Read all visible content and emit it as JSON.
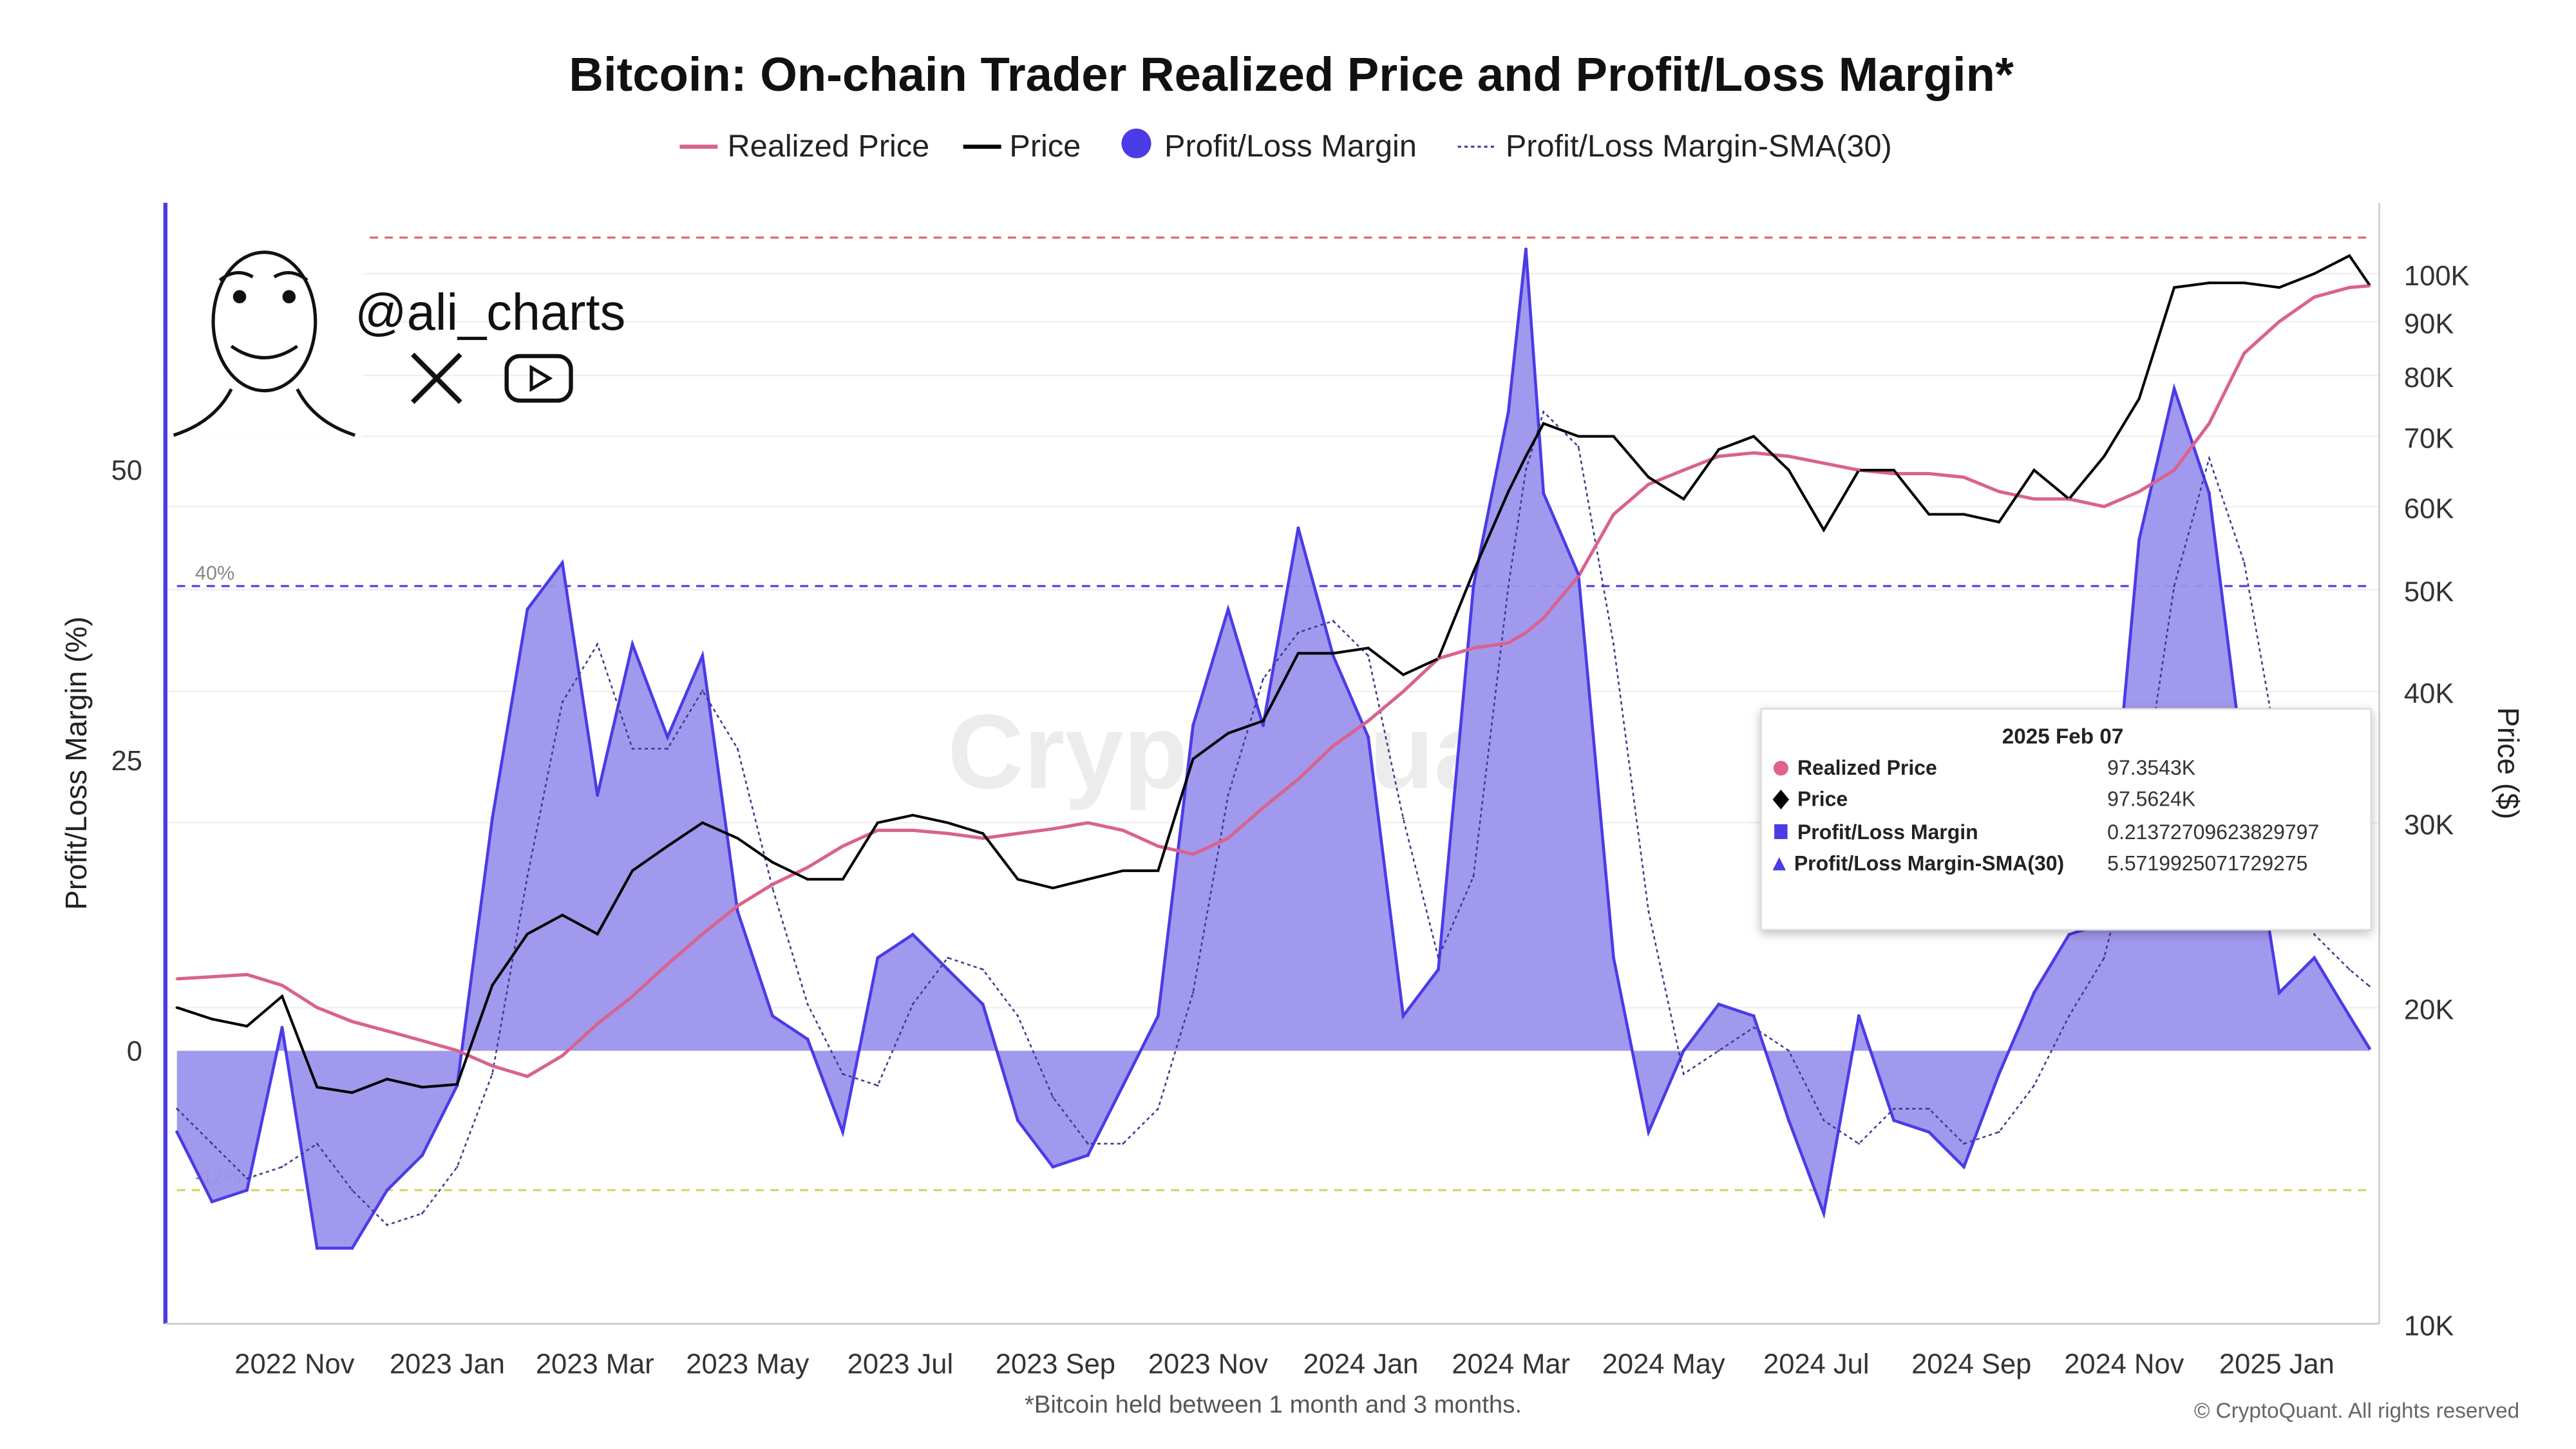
{
  "chart_data": {
    "type": "area",
    "title": "Bitcoin: On-chain Trader Realized Price and Profit/Loss Margin*",
    "footnote": "*Bitcoin held between 1 month and 3 months.",
    "copyright": "© CryptoQuant. All rights reserved",
    "watermark": "CryptoQuant",
    "handle": "@ali_charts",
    "legend": [
      {
        "name": "Realized Price",
        "color": "#d9628e",
        "marker": "line"
      },
      {
        "name": "Price",
        "color": "#000000",
        "marker": "line"
      },
      {
        "name": "Profit/Loss Margin",
        "color": "#4b3be6",
        "marker": "circle"
      },
      {
        "name": "Profit/Loss Margin-SMA(30)",
        "color": "#3b3b8f",
        "marker": "dashed-line"
      }
    ],
    "legend_position": "top-center",
    "ylabel_left": "Profit/Loss Margin (%)",
    "ylabel_right": "Price ($)",
    "y_left_ticks": [
      "50",
      "25",
      "0"
    ],
    "y_left_tick_values": [
      50,
      25,
      0
    ],
    "y_left_range": [
      -23.5,
      73
    ],
    "y_right_scale": "log",
    "y_right_ticks": [
      "100K",
      "90K",
      "80K",
      "70K",
      "60K",
      "50K",
      "40K",
      "30K",
      "20K",
      "10K"
    ],
    "y_right_tick_values": [
      100,
      90,
      80,
      70,
      60,
      50,
      40,
      30,
      20,
      10
    ],
    "y_right_range_k": [
      10,
      110
    ],
    "x_range": [
      "2022-09-15",
      "2025-02-07"
    ],
    "x_ticks": [
      "2022 Nov",
      "2023 Jan",
      "2023 Mar",
      "2023 May",
      "2023 Jul",
      "2023 Sep",
      "2023 Nov",
      "2024 Jan",
      "2024 Mar",
      "2024 May",
      "2024 Jul",
      "2024 Sep",
      "2024 Nov",
      "2025 Jan"
    ],
    "x_tick_dates": [
      "2022-11-01",
      "2023-01-01",
      "2023-03-01",
      "2023-05-01",
      "2023-07-01",
      "2023-09-01",
      "2023-11-01",
      "2024-01-01",
      "2024-03-01",
      "2024-05-01",
      "2024-07-01",
      "2024-09-01",
      "2024-11-01",
      "2025-01-01"
    ],
    "thresholds": [
      {
        "label": "70%",
        "value": 70,
        "color": "#e0606a"
      },
      {
        "label": "40%",
        "value": 40,
        "color": "#4b3be6"
      },
      {
        "label": "-12%",
        "value": -12,
        "color": "#d8d060"
      }
    ],
    "grid": true,
    "series": [
      {
        "date": "2022-09-15",
        "margin": -7,
        "sma": -5,
        "price": 20.0,
        "realized": 21.3
      },
      {
        "date": "2022-09-29",
        "margin": -13,
        "sma": -8,
        "price": 19.5,
        "realized": 21.4
      },
      {
        "date": "2022-10-13",
        "margin": -12,
        "sma": -11,
        "price": 19.2,
        "realized": 21.5
      },
      {
        "date": "2022-10-27",
        "margin": 2,
        "sma": -10,
        "price": 20.5,
        "realized": 21.0
      },
      {
        "date": "2022-11-10",
        "margin": -17,
        "sma": -8,
        "price": 16.8,
        "realized": 20.0
      },
      {
        "date": "2022-11-24",
        "margin": -17,
        "sma": -12,
        "price": 16.6,
        "realized": 19.4
      },
      {
        "date": "2022-12-08",
        "margin": -12,
        "sma": -15,
        "price": 17.1,
        "realized": 19.0
      },
      {
        "date": "2022-12-22",
        "margin": -9,
        "sma": -14,
        "price": 16.8,
        "realized": 18.6
      },
      {
        "date": "2023-01-05",
        "margin": -3,
        "sma": -10,
        "price": 16.9,
        "realized": 18.2
      },
      {
        "date": "2023-01-19",
        "margin": 20,
        "sma": -2,
        "price": 21.0,
        "realized": 17.6
      },
      {
        "date": "2023-02-02",
        "margin": 38,
        "sma": 15,
        "price": 23.5,
        "realized": 17.2
      },
      {
        "date": "2023-02-16",
        "margin": 42,
        "sma": 30,
        "price": 24.5,
        "realized": 18.0
      },
      {
        "date": "2023-03-02",
        "margin": 22,
        "sma": 35,
        "price": 23.5,
        "realized": 19.3
      },
      {
        "date": "2023-03-16",
        "margin": 35,
        "sma": 26,
        "price": 27.0,
        "realized": 20.5
      },
      {
        "date": "2023-03-30",
        "margin": 27,
        "sma": 26,
        "price": 28.5,
        "realized": 22.0
      },
      {
        "date": "2023-04-13",
        "margin": 34,
        "sma": 31,
        "price": 30.0,
        "realized": 23.5
      },
      {
        "date": "2023-04-27",
        "margin": 12,
        "sma": 26,
        "price": 29.0,
        "realized": 25.0
      },
      {
        "date": "2023-05-11",
        "margin": 3,
        "sma": 14,
        "price": 27.5,
        "realized": 26.2
      },
      {
        "date": "2023-05-25",
        "margin": 1,
        "sma": 4,
        "price": 26.5,
        "realized": 27.2
      },
      {
        "date": "2023-06-08",
        "margin": -7,
        "sma": -2,
        "price": 26.5,
        "realized": 28.5
      },
      {
        "date": "2023-06-22",
        "margin": 8,
        "sma": -3,
        "price": 30.0,
        "realized": 29.5
      },
      {
        "date": "2023-07-06",
        "margin": 10,
        "sma": 4,
        "price": 30.5,
        "realized": 29.5
      },
      {
        "date": "2023-07-20",
        "margin": 7,
        "sma": 8,
        "price": 30.0,
        "realized": 29.3
      },
      {
        "date": "2023-08-03",
        "margin": 4,
        "sma": 7,
        "price": 29.3,
        "realized": 29.0
      },
      {
        "date": "2023-08-17",
        "margin": -6,
        "sma": 3,
        "price": 26.5,
        "realized": 29.3
      },
      {
        "date": "2023-08-31",
        "margin": -10,
        "sma": -4,
        "price": 26.0,
        "realized": 29.6
      },
      {
        "date": "2023-09-14",
        "margin": -9,
        "sma": -8,
        "price": 26.5,
        "realized": 30.0
      },
      {
        "date": "2023-09-28",
        "margin": -3,
        "sma": -8,
        "price": 27.0,
        "realized": 29.5
      },
      {
        "date": "2023-10-12",
        "margin": 3,
        "sma": -5,
        "price": 27.0,
        "realized": 28.5
      },
      {
        "date": "2023-10-26",
        "margin": 28,
        "sma": 5,
        "price": 34.5,
        "realized": 28.0
      },
      {
        "date": "2023-11-09",
        "margin": 38,
        "sma": 22,
        "price": 36.5,
        "realized": 29.0
      },
      {
        "date": "2023-11-23",
        "margin": 28,
        "sma": 32,
        "price": 37.5,
        "realized": 31.0
      },
      {
        "date": "2023-12-07",
        "margin": 45,
        "sma": 36,
        "price": 43.5,
        "realized": 33.0
      },
      {
        "date": "2023-12-21",
        "margin": 34,
        "sma": 37,
        "price": 43.5,
        "realized": 35.5
      },
      {
        "date": "2024-01-04",
        "margin": 27,
        "sma": 34,
        "price": 44.0,
        "realized": 37.5
      },
      {
        "date": "2024-01-18",
        "margin": 3,
        "sma": 20,
        "price": 41.5,
        "realized": 40.0
      },
      {
        "date": "2024-02-01",
        "margin": 7,
        "sma": 8,
        "price": 43.0,
        "realized": 43.0
      },
      {
        "date": "2024-02-15",
        "margin": 40,
        "sma": 15,
        "price": 52.0,
        "realized": 44.0
      },
      {
        "date": "2024-02-29",
        "margin": 55,
        "sma": 40,
        "price": 62.0,
        "realized": 44.5
      },
      {
        "date": "2024-03-07",
        "margin": 69,
        "sma": 50,
        "price": 67.0,
        "realized": 45.5
      },
      {
        "date": "2024-03-14",
        "margin": 48,
        "sma": 55,
        "price": 72.0,
        "realized": 47.0
      },
      {
        "date": "2024-03-28",
        "margin": 41,
        "sma": 52,
        "price": 70.0,
        "realized": 51.5
      },
      {
        "date": "2024-04-11",
        "margin": 8,
        "sma": 35,
        "price": 70.0,
        "realized": 59.0
      },
      {
        "date": "2024-04-25",
        "margin": -7,
        "sma": 12,
        "price": 64.0,
        "realized": 63.0
      },
      {
        "date": "2024-05-09",
        "margin": 0,
        "sma": -2,
        "price": 61.0,
        "realized": 65.0
      },
      {
        "date": "2024-05-23",
        "margin": 4,
        "sma": 0,
        "price": 68.0,
        "realized": 67.0
      },
      {
        "date": "2024-06-06",
        "margin": 3,
        "sma": 2,
        "price": 70.0,
        "realized": 67.5
      },
      {
        "date": "2024-06-20",
        "margin": -6,
        "sma": 0,
        "price": 65.0,
        "realized": 67.0
      },
      {
        "date": "2024-07-04",
        "margin": -14,
        "sma": -6,
        "price": 57.0,
        "realized": 66.0
      },
      {
        "date": "2024-07-18",
        "margin": 3,
        "sma": -8,
        "price": 65.0,
        "realized": 65.0
      },
      {
        "date": "2024-08-01",
        "margin": -6,
        "sma": -5,
        "price": 65.0,
        "realized": 64.5
      },
      {
        "date": "2024-08-15",
        "margin": -7,
        "sma": -5,
        "price": 59.0,
        "realized": 64.5
      },
      {
        "date": "2024-08-29",
        "margin": -10,
        "sma": -8,
        "price": 59.0,
        "realized": 64.0
      },
      {
        "date": "2024-09-12",
        "margin": -2,
        "sma": -7,
        "price": 58.0,
        "realized": 62.0
      },
      {
        "date": "2024-09-26",
        "margin": 5,
        "sma": -3,
        "price": 65.0,
        "realized": 61.0
      },
      {
        "date": "2024-10-10",
        "margin": 10,
        "sma": 3,
        "price": 61.0,
        "realized": 61.0
      },
      {
        "date": "2024-10-24",
        "margin": 11,
        "sma": 8,
        "price": 67.0,
        "realized": 60.0
      },
      {
        "date": "2024-11-07",
        "margin": 44,
        "sma": 20,
        "price": 76.0,
        "realized": 62.0
      },
      {
        "date": "2024-11-21",
        "margin": 57,
        "sma": 40,
        "price": 97.0,
        "realized": 65.0
      },
      {
        "date": "2024-12-05",
        "margin": 48,
        "sma": 51,
        "price": 98.0,
        "realized": 72.0
      },
      {
        "date": "2024-12-19",
        "margin": 24,
        "sma": 42,
        "price": 98.0,
        "realized": 84.0
      },
      {
        "date": "2025-01-02",
        "margin": 5,
        "sma": 25,
        "price": 97.0,
        "realized": 90.0
      },
      {
        "date": "2025-01-16",
        "margin": 8,
        "sma": 10,
        "price": 100.0,
        "realized": 95.0
      },
      {
        "date": "2025-01-30",
        "margin": 3,
        "sma": 7,
        "price": 104.0,
        "realized": 97.0
      },
      {
        "date": "2025-02-07",
        "margin": 0.21,
        "sma": 5.57,
        "price": 97.56,
        "realized": 97.35
      }
    ]
  },
  "tooltip": {
    "date": "2025 Feb 07",
    "rows": [
      {
        "label": "Realized Price",
        "value": "97.3543K",
        "marker": "circle",
        "color": "#e0608f"
      },
      {
        "label": "Price",
        "value": "97.5624K",
        "marker": "diamond",
        "color": "#000000"
      },
      {
        "label": "Profit/Loss Margin",
        "value": "0.21372709623829797",
        "marker": "square",
        "color": "#4b3be6"
      },
      {
        "label": "Profit/Loss Margin-SMA(30)",
        "value": "5.5719925071729275",
        "marker": "triangle",
        "color": "#4b3be6"
      }
    ]
  }
}
